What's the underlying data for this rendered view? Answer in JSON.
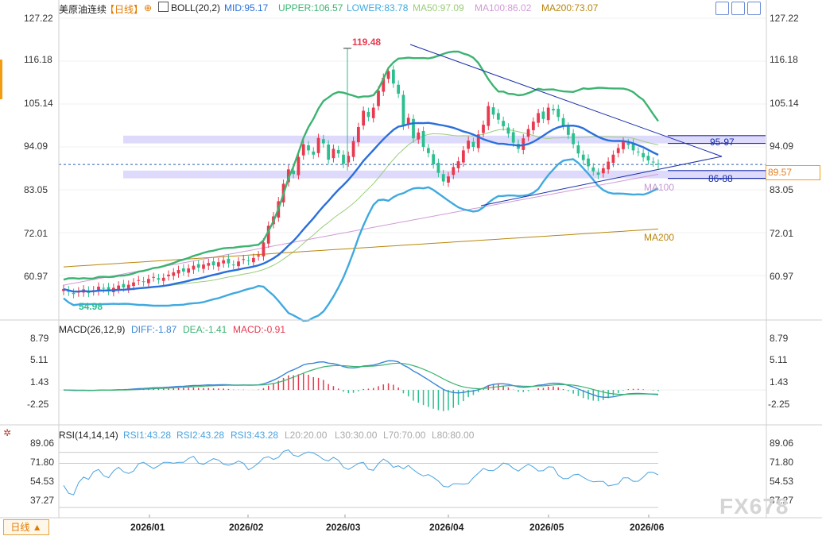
{
  "header": {
    "symbol": "美原油连续",
    "period": "【日线】",
    "indicator": "BOLL(20,2)",
    "mid": "MID:95.17",
    "upper": "UPPER:106.57",
    "lower": "LOWER:83.78",
    "ma50": "MA50:97.09",
    "ma100": "MA100:86.02",
    "ma200": "MA200:73.07"
  },
  "macd_header": {
    "name": "MACD(26,12,9)",
    "diff": "DIFF:-1.87",
    "dea": "DEA:-1.41",
    "macd": "MACD:-0.91"
  },
  "rsi_header": {
    "name": "RSI(14,14,14)",
    "rsi1": "RSI1:43.28",
    "rsi2": "RSI2:43.28",
    "rsi3": "RSI3:43.28",
    "l20": "L20:20.00",
    "l30": "L30:30.00",
    "l70": "L70:70.00",
    "l80": "L80:80.00"
  },
  "annotations": {
    "high": "119.48",
    "low": "54.98",
    "zone_upper": "95-97",
    "zone_lower": "86-88",
    "ma100_label": "MA100",
    "ma200_label": "MA200",
    "current_price": "89.57"
  },
  "price_axis": {
    "ticks": [
      "127.22",
      "116.18",
      "105.14",
      "94.09",
      "83.05",
      "72.01",
      "60.97"
    ]
  },
  "macd_axis": {
    "ticks": [
      "8.79",
      "5.11",
      "1.43",
      "-2.25"
    ]
  },
  "rsi_axis": {
    "ticks": [
      "89.06",
      "71.80",
      "54.53",
      "37.27"
    ]
  },
  "x_axis": {
    "ticks": [
      "2026/01",
      "2026/02",
      "2026/03",
      "2026/04",
      "2026/05",
      "2026/06"
    ]
  },
  "footer": {
    "tab_label": "日线 ▲",
    "watermark": "FX678"
  },
  "colors": {
    "up": "#e8394f",
    "down": "#2bbf8f",
    "upper": "#3cb371",
    "mid": "#2a6fdb",
    "lower": "#3fa9e0",
    "ma50": "#9acd7a",
    "ma100": "#d19bd6",
    "ma200": "#b8860b",
    "zone": "#d8d4fb",
    "dif": "#3b86d8",
    "dea": "#3cb371",
    "rsi": "#4aa3df"
  },
  "chart_data": [
    {
      "type": "candlestick",
      "title": "美原油连续 【日线】",
      "ylim": [
        50,
        131
      ],
      "bars": 120,
      "dates_marked": [
        "2026/01",
        "2026/02",
        "2026/03",
        "2026/04",
        "2026/05",
        "2026/06"
      ],
      "highest": 119.48,
      "lowest": 54.98,
      "last_close": 89.57,
      "close_series": [
        57.5,
        56.8,
        56.2,
        56.9,
        57.4,
        56.5,
        57.2,
        58.1,
        57.6,
        57.0,
        57.8,
        58.4,
        57.9,
        58.6,
        59.2,
        59.8,
        59.3,
        60.1,
        60.6,
        59.9,
        60.4,
        61.2,
        61.8,
        62.4,
        62.0,
        62.8,
        63.5,
        63.0,
        63.8,
        64.2,
        63.6,
        64.4,
        64.9,
        64.1,
        63.7,
        64.6,
        65.2,
        64.7,
        65.5,
        66.2,
        69.5,
        73.8,
        76.2,
        80.1,
        84.6,
        88.3,
        87.1,
        91.5,
        94.8,
        93.2,
        92.1,
        96.4,
        95.0,
        90.8,
        93.6,
        92.4,
        89.7,
        91.8,
        95.6,
        99.2,
        103.4,
        101.8,
        104.2,
        108.6,
        111.9,
        113.6,
        110.4,
        107.8,
        99.5,
        101.6,
        96.3,
        97.8,
        94.1,
        92.5,
        89.6,
        87.4,
        85.2,
        86.5,
        88.9,
        90.4,
        93.2,
        95.7,
        94.1,
        97.3,
        99.8,
        104.6,
        102.4,
        101.1,
        99.4,
        97.5,
        95.2,
        93.6,
        96.3,
        98.7,
        100.6,
        102.8,
        101.3,
        104.2,
        103.5,
        101.8,
        99.6,
        97.2,
        94.8,
        92.4,
        90.7,
        89.1,
        87.8,
        86.9,
        88.6,
        90.3,
        92.1,
        93.8,
        95.4,
        94.6,
        93.2,
        92.8,
        91.4,
        90.6,
        90.1,
        89.57
      ],
      "boll_upper": 106.57,
      "boll_mid": 95.17,
      "boll_lower": 83.78,
      "ma50": 97.09,
      "ma100": 86.02,
      "ma200": 73.07,
      "zones": [
        {
          "label": "95-97",
          "from": 95,
          "to": 97
        },
        {
          "label": "86-88",
          "from": 86,
          "to": 88
        }
      ]
    },
    {
      "type": "macd",
      "params": "26,12,9",
      "diff": -1.87,
      "dea": -1.41,
      "macd": -0.91,
      "ylim": [
        -5.3,
        10.5
      ]
    },
    {
      "type": "line",
      "name": "RSI",
      "params": "14,14,14",
      "rsi1": 43.28,
      "levels": [
        20,
        30,
        70,
        80
      ],
      "ylim": [
        22,
        95
      ]
    }
  ]
}
